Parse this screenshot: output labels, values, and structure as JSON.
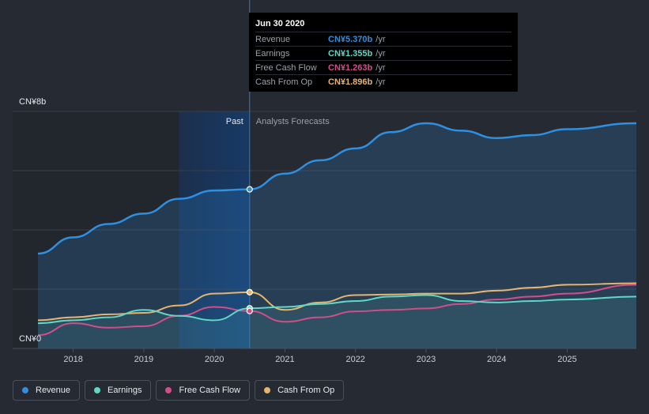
{
  "chart_data": {
    "type": "line",
    "y_axis": {
      "top_label": "CN¥8b",
      "bottom_label": "CN¥0",
      "ylim": [
        0,
        8
      ]
    },
    "x_ticks": [
      "2018",
      "2019",
      "2020",
      "2021",
      "2022",
      "2023",
      "2024",
      "2025"
    ],
    "xlim": [
      2017.5,
      2025.98
    ],
    "divider_x": 2020.5,
    "past_label": "Past",
    "forecast_label": "Analysts Forecasts",
    "series": [
      {
        "name": "Revenue",
        "color": "#2f8fe0",
        "fill": true,
        "points": [
          [
            2017.5,
            3.2
          ],
          [
            2018,
            3.75
          ],
          [
            2018.5,
            4.2
          ],
          [
            2019,
            4.55
          ],
          [
            2019.5,
            5.05
          ],
          [
            2020,
            5.33
          ],
          [
            2020.5,
            5.37
          ],
          [
            2021,
            5.9
          ],
          [
            2021.5,
            6.35
          ],
          [
            2022,
            6.75
          ],
          [
            2022.5,
            7.3
          ],
          [
            2023,
            7.6
          ],
          [
            2023.5,
            7.35
          ],
          [
            2024,
            7.1
          ],
          [
            2024.5,
            7.2
          ],
          [
            2025,
            7.4
          ],
          [
            2025.98,
            7.6
          ]
        ]
      },
      {
        "name": "Earnings",
        "color": "#5fd6c6",
        "fill": true,
        "points": [
          [
            2017.5,
            0.85
          ],
          [
            2018,
            0.95
          ],
          [
            2018.5,
            1.05
          ],
          [
            2019,
            1.3
          ],
          [
            2019.5,
            1.1
          ],
          [
            2020,
            0.95
          ],
          [
            2020.5,
            1.355
          ],
          [
            2021,
            1.4
          ],
          [
            2021.5,
            1.5
          ],
          [
            2022,
            1.6
          ],
          [
            2022.5,
            1.75
          ],
          [
            2023,
            1.8
          ],
          [
            2023.5,
            1.6
          ],
          [
            2024,
            1.55
          ],
          [
            2024.5,
            1.6
          ],
          [
            2025,
            1.65
          ],
          [
            2025.98,
            1.75
          ]
        ]
      },
      {
        "name": "Free Cash Flow",
        "color": "#d04e8a",
        "fill": false,
        "points": [
          [
            2017.5,
            0.45
          ],
          [
            2018,
            0.85
          ],
          [
            2018.5,
            0.7
          ],
          [
            2019,
            0.75
          ],
          [
            2019.5,
            1.1
          ],
          [
            2020,
            1.4
          ],
          [
            2020.5,
            1.263
          ],
          [
            2021,
            0.9
          ],
          [
            2021.5,
            1.05
          ],
          [
            2022,
            1.25
          ],
          [
            2022.5,
            1.3
          ],
          [
            2023,
            1.35
          ],
          [
            2023.5,
            1.5
          ],
          [
            2024,
            1.65
          ],
          [
            2024.5,
            1.75
          ],
          [
            2025,
            1.85
          ],
          [
            2025.98,
            2.15
          ]
        ]
      },
      {
        "name": "Cash From Op",
        "color": "#e6b46e",
        "fill": false,
        "points": [
          [
            2017.5,
            0.95
          ],
          [
            2018,
            1.05
          ],
          [
            2018.5,
            1.15
          ],
          [
            2019,
            1.2
          ],
          [
            2019.5,
            1.45
          ],
          [
            2020,
            1.85
          ],
          [
            2020.5,
            1.896
          ],
          [
            2021,
            1.3
          ],
          [
            2021.5,
            1.55
          ],
          [
            2022,
            1.8
          ],
          [
            2022.5,
            1.82
          ],
          [
            2023,
            1.85
          ],
          [
            2023.5,
            1.85
          ],
          [
            2024,
            1.95
          ],
          [
            2024.5,
            2.05
          ],
          [
            2025,
            2.15
          ],
          [
            2025.98,
            2.2
          ]
        ]
      }
    ]
  },
  "tooltip": {
    "date": "Jun 30 2020",
    "rows": [
      {
        "name": "Revenue",
        "value": "CN¥5.370b",
        "unit": "/yr",
        "color": "#2f8fe0"
      },
      {
        "name": "Earnings",
        "value": "CN¥1.355b",
        "unit": "/yr",
        "color": "#5fd6c6"
      },
      {
        "name": "Free Cash Flow",
        "value": "CN¥1.263b",
        "unit": "/yr",
        "color": "#d04e8a"
      },
      {
        "name": "Cash From Op",
        "value": "CN¥1.896b",
        "unit": "/yr",
        "color": "#e6b46e"
      }
    ]
  },
  "legend": [
    {
      "label": "Revenue",
      "color": "#2f8fe0"
    },
    {
      "label": "Earnings",
      "color": "#5fd6c6"
    },
    {
      "label": "Free Cash Flow",
      "color": "#d04e8a"
    },
    {
      "label": "Cash From Op",
      "color": "#e6b46e"
    }
  ]
}
